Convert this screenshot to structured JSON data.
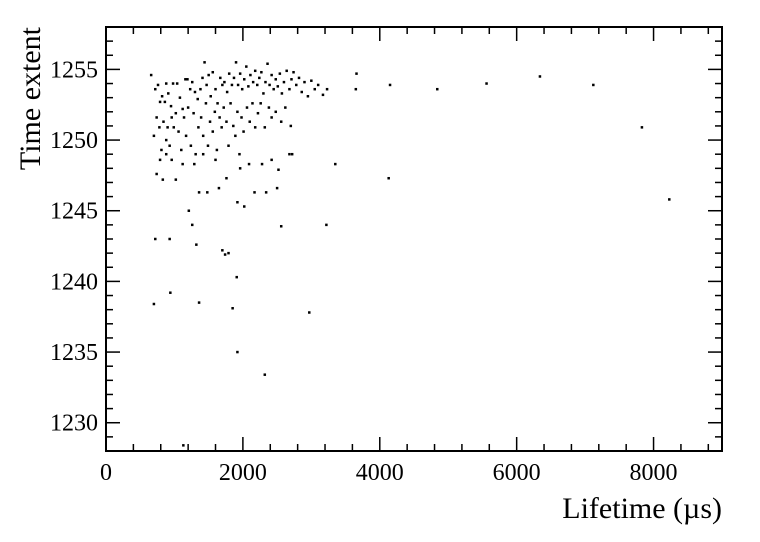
{
  "chart_data": {
    "type": "scatter",
    "title": "",
    "xlabel": "Lifetime (µs)",
    "ylabel": "Time extent",
    "xlim": [
      0,
      9000
    ],
    "ylim": [
      1228,
      1258
    ],
    "x_major_ticks": [
      0,
      2000,
      4000,
      6000,
      8000
    ],
    "x_minor_step": 400,
    "y_major_ticks": [
      1230,
      1235,
      1240,
      1245,
      1250,
      1255
    ],
    "y_minor_step": 1,
    "grid": false,
    "legend": "none",
    "marker_color": "#000000",
    "points": [
      [
        660,
        1254.6
      ],
      [
        720,
        1253.6
      ],
      [
        760,
        1253.9
      ],
      [
        790,
        1252.7
      ],
      [
        820,
        1253.1
      ],
      [
        860,
        1252.7
      ],
      [
        880,
        1254.0
      ],
      [
        910,
        1253.3
      ],
      [
        950,
        1252.4
      ],
      [
        980,
        1254.0
      ],
      [
        1040,
        1254.0
      ],
      [
        1080,
        1253.0
      ],
      [
        1120,
        1252.2
      ],
      [
        1160,
        1254.3
      ],
      [
        1190,
        1254.3
      ],
      [
        1230,
        1253.6
      ],
      [
        1260,
        1254.1
      ],
      [
        1300,
        1253.4
      ],
      [
        1340,
        1252.9
      ],
      [
        1380,
        1253.6
      ],
      [
        1410,
        1254.4
      ],
      [
        1440,
        1255.5
      ],
      [
        1470,
        1253.9
      ],
      [
        1500,
        1254.6
      ],
      [
        1530,
        1253.1
      ],
      [
        1560,
        1254.8
      ],
      [
        1600,
        1253.6
      ],
      [
        1630,
        1252.6
      ],
      [
        1670,
        1254.4
      ],
      [
        1700,
        1253.9
      ],
      [
        1730,
        1254.1
      ],
      [
        1770,
        1253.4
      ],
      [
        1800,
        1254.7
      ],
      [
        1840,
        1253.9
      ],
      [
        1870,
        1254.4
      ],
      [
        1900,
        1255.5
      ],
      [
        1930,
        1253.9
      ],
      [
        1960,
        1254.7
      ],
      [
        1990,
        1253.6
      ],
      [
        2020,
        1254.3
      ],
      [
        2050,
        1255.2
      ],
      [
        2080,
        1253.8
      ],
      [
        2110,
        1254.6
      ],
      [
        2150,
        1254.1
      ],
      [
        2180,
        1254.9
      ],
      [
        2210,
        1253.9
      ],
      [
        2240,
        1254.4
      ],
      [
        2270,
        1254.8
      ],
      [
        2300,
        1253.3
      ],
      [
        2330,
        1254.1
      ],
      [
        2360,
        1255.4
      ],
      [
        2390,
        1253.9
      ],
      [
        2420,
        1254.6
      ],
      [
        2450,
        1253.6
      ],
      [
        2480,
        1254.3
      ],
      [
        2510,
        1253.8
      ],
      [
        2540,
        1254.7
      ],
      [
        2570,
        1253.3
      ],
      [
        2600,
        1254.1
      ],
      [
        2640,
        1254.9
      ],
      [
        2680,
        1253.6
      ],
      [
        2710,
        1254.3
      ],
      [
        2740,
        1254.8
      ],
      [
        2780,
        1253.9
      ],
      [
        2820,
        1254.4
      ],
      [
        2860,
        1253.4
      ],
      [
        2900,
        1254.1
      ],
      [
        2950,
        1253.1
      ],
      [
        3000,
        1254.2
      ],
      [
        3050,
        1253.6
      ],
      [
        3100,
        1253.9
      ],
      [
        3170,
        1253.2
      ],
      [
        3230,
        1253.6
      ],
      [
        700,
        1250.3
      ],
      [
        740,
        1251.6
      ],
      [
        780,
        1250.9
      ],
      [
        810,
        1249.3
      ],
      [
        840,
        1251.3
      ],
      [
        880,
        1250.0
      ],
      [
        900,
        1250.9
      ],
      [
        930,
        1249.6
      ],
      [
        960,
        1251.6
      ],
      [
        990,
        1250.9
      ],
      [
        1020,
        1251.9
      ],
      [
        1060,
        1250.6
      ],
      [
        1100,
        1249.3
      ],
      [
        1140,
        1251.6
      ],
      [
        1170,
        1250.3
      ],
      [
        1200,
        1252.3
      ],
      [
        1240,
        1249.6
      ],
      [
        1280,
        1251.9
      ],
      [
        1310,
        1249.0
      ],
      [
        1350,
        1250.9
      ],
      [
        1390,
        1251.6
      ],
      [
        1420,
        1250.3
      ],
      [
        1460,
        1252.6
      ],
      [
        1490,
        1249.6
      ],
      [
        1520,
        1251.3
      ],
      [
        1560,
        1250.6
      ],
      [
        1590,
        1252.0
      ],
      [
        1620,
        1249.3
      ],
      [
        1660,
        1251.6
      ],
      [
        1690,
        1250.9
      ],
      [
        1720,
        1252.3
      ],
      [
        1760,
        1251.3
      ],
      [
        1790,
        1249.6
      ],
      [
        1820,
        1252.6
      ],
      [
        1860,
        1251.0
      ],
      [
        1890,
        1250.3
      ],
      [
        1920,
        1252.0
      ],
      [
        1950,
        1249.0
      ],
      [
        1980,
        1251.6
      ],
      [
        2010,
        1250.6
      ],
      [
        2060,
        1252.3
      ],
      [
        2100,
        1251.3
      ],
      [
        2140,
        1252.6
      ],
      [
        2180,
        1250.9
      ],
      [
        2220,
        1251.9
      ],
      [
        2260,
        1252.6
      ],
      [
        2320,
        1250.9
      ],
      [
        2380,
        1252.3
      ],
      [
        2420,
        1251.6
      ],
      [
        2480,
        1252.0
      ],
      [
        2560,
        1251.3
      ],
      [
        2620,
        1252.3
      ],
      [
        2700,
        1251.0
      ],
      [
        740,
        1247.6
      ],
      [
        790,
        1248.6
      ],
      [
        830,
        1247.2
      ],
      [
        880,
        1249.0
      ],
      [
        960,
        1248.6
      ],
      [
        1020,
        1247.2
      ],
      [
        1120,
        1248.3
      ],
      [
        1290,
        1248.3
      ],
      [
        1420,
        1249.0
      ],
      [
        1600,
        1248.6
      ],
      [
        1760,
        1247.3
      ],
      [
        1960,
        1248.0
      ],
      [
        2090,
        1248.3
      ],
      [
        2280,
        1248.3
      ],
      [
        2420,
        1248.6
      ],
      [
        2520,
        1247.9
      ],
      [
        2680,
        1249.0
      ],
      [
        2720,
        1249.0
      ],
      [
        3350,
        1248.3
      ],
      [
        1360,
        1246.3
      ],
      [
        1480,
        1246.3
      ],
      [
        1650,
        1246.6
      ],
      [
        1920,
        1245.6
      ],
      [
        2020,
        1245.3
      ],
      [
        2170,
        1246.3
      ],
      [
        2340,
        1246.3
      ],
      [
        2500,
        1246.6
      ],
      [
        1210,
        1245.0
      ],
      [
        1260,
        1244.0
      ],
      [
        1320,
        1242.6
      ],
      [
        2560,
        1243.9
      ],
      [
        3220,
        1244.0
      ],
      [
        720,
        1243.0
      ],
      [
        930,
        1243.0
      ],
      [
        1700,
        1242.2
      ],
      [
        1740,
        1241.9
      ],
      [
        1790,
        1242.0
      ],
      [
        1910,
        1240.3
      ],
      [
        700,
        1238.4
      ],
      [
        940,
        1239.2
      ],
      [
        1360,
        1238.5
      ],
      [
        1850,
        1238.1
      ],
      [
        2970,
        1237.8
      ],
      [
        1920,
        1235.0
      ],
      [
        2320,
        1233.4
      ],
      [
        1130,
        1228.4
      ],
      [
        3660,
        1254.7
      ],
      [
        3650,
        1253.6
      ],
      [
        4150,
        1253.9
      ],
      [
        4840,
        1253.6
      ],
      [
        5560,
        1254.0
      ],
      [
        6340,
        1254.5
      ],
      [
        7120,
        1253.9
      ],
      [
        7830,
        1250.9
      ],
      [
        8230,
        1245.8
      ],
      [
        4130,
        1247.3
      ]
    ]
  }
}
